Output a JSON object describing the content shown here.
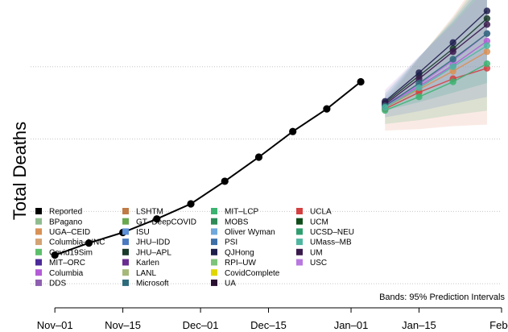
{
  "chart_data": {
    "type": "line",
    "ylabel": "Total Deaths",
    "xlabel": "",
    "x_ticks": [
      "Nov–01",
      "Nov–15",
      "Dec–01",
      "Dec–15",
      "Jan–01",
      "Jan–15",
      "Feb–"
    ],
    "x_tick_days": [
      0,
      14,
      30,
      44,
      61,
      75,
      92
    ],
    "xlim_days": [
      -5,
      92
    ],
    "ylim": [
      0,
      100
    ],
    "y_tick_values": [
      8,
      32,
      56,
      80,
      104
    ],
    "y_tick_labels": [
      "",
      "",
      "",
      "",
      ""
    ],
    "grid": true,
    "note": "Bands: 95% Prediction Intervals",
    "reported": {
      "name": "Reported",
      "color": "#000000",
      "days": [
        0,
        7,
        14,
        21,
        28,
        35,
        42,
        49,
        56,
        63
      ],
      "values": [
        17.5,
        21.5,
        25.0,
        29.5,
        34.5,
        42.0,
        50.0,
        58.5,
        66.0,
        75.0
      ]
    },
    "forecast": {
      "days": [
        68,
        75,
        82,
        89
      ],
      "median": [
        67.0,
        74.0,
        81.0,
        89.0
      ],
      "band_lower": [
        62.0,
        62.5,
        63.5,
        64.0
      ],
      "band_upper": [
        71.0,
        86.0,
        100.0,
        116.0
      ],
      "band_colors": [
        "#e8a088",
        "#6dbf8f",
        "#7a8cc9",
        "#4aa8a0",
        "#c89ae0"
      ],
      "series": [
        {
          "name": "UGA–CEID",
          "color": "#d99155",
          "values": [
            66.5,
            72.5,
            78.5,
            85.0
          ]
        },
        {
          "name": "UCLA",
          "color": "#d43f3f",
          "values": [
            66.0,
            71.5,
            76.0,
            79.5
          ]
        },
        {
          "name": "Columbia",
          "color": "#b35cd6",
          "values": [
            67.0,
            73.5,
            80.5,
            88.5
          ]
        },
        {
          "name": "USC",
          "color": "#b878e0",
          "values": [
            67.5,
            74.0,
            82.0,
            91.0
          ]
        },
        {
          "name": "JHU–APL",
          "color": "#1a3a2a",
          "values": [
            68.0,
            77.0,
            86.0,
            96.0
          ]
        },
        {
          "name": "QJHong",
          "color": "#1f1f4d",
          "values": [
            68.5,
            78.0,
            88.0,
            98.5
          ]
        },
        {
          "name": "UM",
          "color": "#3a1a4d",
          "values": [
            67.5,
            76.0,
            85.0,
            94.0
          ]
        },
        {
          "name": "MIT–LCP",
          "color": "#3cb371",
          "values": [
            65.5,
            70.0,
            75.0,
            81.0
          ]
        },
        {
          "name": "Microsoft",
          "color": "#2e6b7a",
          "values": [
            67.0,
            74.5,
            82.5,
            91.0
          ]
        },
        {
          "name": "UMass–MB",
          "color": "#4fb6a0",
          "values": [
            66.5,
            73.0,
            80.0,
            87.0
          ]
        }
      ]
    },
    "legend": {
      "placement": "bottom-left",
      "columns": [
        [
          {
            "label": "Reported",
            "color": "#000000"
          },
          {
            "label": "BPagano",
            "color": "#8fbc8f"
          },
          {
            "label": "UGA–CEID",
            "color": "#d99155"
          },
          {
            "label": "Columbia–UNC",
            "color": "#d4a373"
          },
          {
            "label": "Covid19Sim",
            "color": "#5cbf6b"
          },
          {
            "label": "MIT–ORC",
            "color": "#4b2a99"
          },
          {
            "label": "Columbia",
            "color": "#b35cd6"
          },
          {
            "label": "DDS",
            "color": "#8e5fb0"
          }
        ],
        [
          {
            "label": "LSHTM",
            "color": "#c07a45"
          },
          {
            "label": "GT–DeepCOVID",
            "color": "#6aa84f"
          },
          {
            "label": "ISU",
            "color": "#5b8fd6"
          },
          {
            "label": "JHU–IDD",
            "color": "#4a7abf"
          },
          {
            "label": "JHU–APL",
            "color": "#1a3a2a"
          },
          {
            "label": "Karlen",
            "color": "#6a2c91"
          },
          {
            "label": "LANL",
            "color": "#a6b87a"
          },
          {
            "label": "Microsoft",
            "color": "#2e6b7a"
          }
        ],
        [
          {
            "label": "MIT–LCP",
            "color": "#3cb371"
          },
          {
            "label": "MOBS",
            "color": "#2e8b57"
          },
          {
            "label": "Oliver Wyman",
            "color": "#6fa8dc"
          },
          {
            "label": "PSI",
            "color": "#3d6fa8"
          },
          {
            "label": "QJHong",
            "color": "#1f1f4d"
          },
          {
            "label": "RPI–UW",
            "color": "#7cc47c"
          },
          {
            "label": "CovidComplete",
            "color": "#e0d700"
          },
          {
            "label": "UA",
            "color": "#2a1030"
          }
        ],
        [
          {
            "label": "UCLA",
            "color": "#d43f3f"
          },
          {
            "label": "UCM",
            "color": "#0f4d1a"
          },
          {
            "label": "UCSD–NEU",
            "color": "#2f9e6f"
          },
          {
            "label": "UMass–MB",
            "color": "#4fb6a0"
          },
          {
            "label": "UM",
            "color": "#3a1a4d"
          },
          {
            "label": "USC",
            "color": "#b878e0"
          }
        ]
      ]
    }
  }
}
